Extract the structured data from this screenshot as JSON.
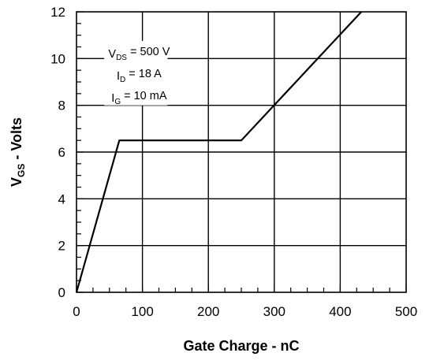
{
  "chart_data": {
    "type": "line",
    "xlabel": "Gate Charge - nC",
    "ylabel": {
      "main": "V",
      "sub": "GS",
      "rest": " - Volts"
    },
    "xlim": [
      0,
      500
    ],
    "ylim": [
      0,
      12
    ],
    "x_ticks": [
      0,
      100,
      200,
      300,
      400,
      500
    ],
    "y_ticks": [
      0,
      2,
      4,
      6,
      8,
      10,
      12
    ],
    "x_tick_labels": [
      "0",
      "100",
      "200",
      "300",
      "400",
      "500"
    ],
    "y_tick_labels": [
      "0",
      "2",
      "4",
      "6",
      "8",
      "10",
      "12"
    ],
    "grid": true,
    "series": [
      {
        "x": [
          0,
          65,
          250,
          432
        ],
        "y": [
          0,
          6.5,
          6.5,
          12
        ],
        "color": "#000000"
      }
    ],
    "annotations": [
      {
        "main": "V",
        "sub": "DS",
        "rest": " = 500 V"
      },
      {
        "main": "I",
        "sub": "D",
        "rest": " = 18 A"
      },
      {
        "main": "I",
        "sub": "G",
        "rest": " = 10 mA"
      }
    ]
  }
}
